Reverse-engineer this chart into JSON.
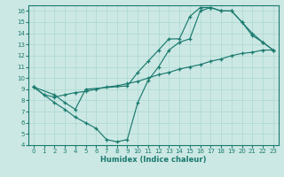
{
  "xlabel": "Humidex (Indice chaleur)",
  "bg_color": "#cce8e4",
  "line_color": "#1a7a6e",
  "xlim": [
    -0.5,
    23.5
  ],
  "ylim": [
    4,
    16.5
  ],
  "xticks": [
    0,
    1,
    2,
    3,
    4,
    5,
    6,
    7,
    8,
    9,
    10,
    11,
    12,
    13,
    14,
    15,
    16,
    17,
    18,
    19,
    20,
    21,
    22,
    23
  ],
  "yticks": [
    4,
    5,
    6,
    7,
    8,
    9,
    10,
    11,
    12,
    13,
    14,
    15,
    16
  ],
  "line1_x": [
    0,
    1,
    2,
    3,
    4,
    5,
    6,
    7,
    8,
    9,
    10,
    11,
    12,
    13,
    14,
    15,
    16,
    17,
    18,
    19,
    20,
    21,
    22,
    23
  ],
  "line1_y": [
    9.2,
    8.5,
    7.8,
    7.2,
    6.5,
    6.0,
    5.5,
    4.5,
    4.3,
    4.5,
    7.8,
    9.8,
    11.0,
    12.5,
    13.2,
    13.5,
    16.0,
    16.3,
    16.0,
    16.0,
    15.0,
    14.0,
    13.2,
    12.5
  ],
  "line2_x": [
    0,
    1,
    2,
    3,
    4,
    5,
    6,
    7,
    8,
    9,
    10,
    11,
    12,
    13,
    14,
    15,
    16,
    17,
    18,
    19,
    20,
    21,
    22,
    23
  ],
  "line2_y": [
    9.2,
    8.5,
    8.3,
    8.5,
    8.7,
    8.8,
    9.0,
    9.2,
    9.3,
    9.5,
    9.7,
    10.0,
    10.3,
    10.5,
    10.8,
    11.0,
    11.2,
    11.5,
    11.7,
    12.0,
    12.2,
    12.3,
    12.5,
    12.5
  ],
  "line3_x": [
    0,
    2,
    3,
    4,
    5,
    9,
    10,
    11,
    12,
    13,
    14,
    15,
    16,
    17,
    18,
    19,
    20,
    21,
    22,
    23
  ],
  "line3_y": [
    9.2,
    8.5,
    7.8,
    7.2,
    9.0,
    9.3,
    10.5,
    11.5,
    12.5,
    13.5,
    13.5,
    15.5,
    16.3,
    16.3,
    16.0,
    16.0,
    15.0,
    13.8,
    13.2,
    12.5
  ]
}
